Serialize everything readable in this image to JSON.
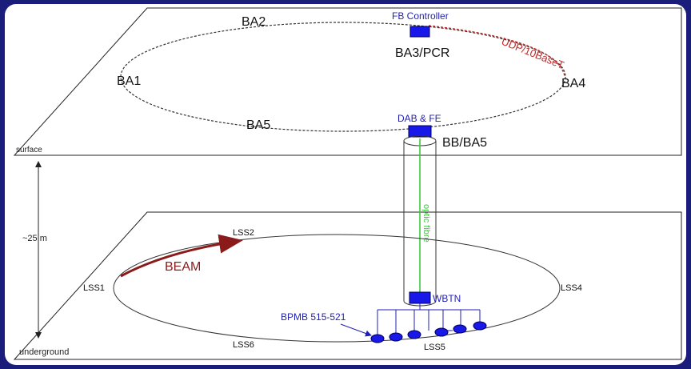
{
  "colors": {
    "frame": "#1a1e7a",
    "controller_blue": "#1818e8",
    "label_blue": "#1f1fb8",
    "udp_red": "#c0282a",
    "beam_red": "#8b1a1a",
    "fibre_green": "#3ec93e"
  },
  "surface": {
    "plane_label": "surface",
    "points": [
      "BA1",
      "BA2",
      "BA3/PCR",
      "BA4",
      "BA5"
    ],
    "fb_controller": "FB Controller",
    "udp_link": "UDP/10BaseT",
    "dab_fe": "DAB & FE",
    "bb_ba5": "BB/BA5"
  },
  "fibre_label": "optic fibre",
  "depth_label": "~25 m",
  "underground": {
    "plane_label": "underground",
    "points": [
      "LSS1",
      "LSS2",
      "LSS4",
      "LSS5",
      "LSS6"
    ],
    "beam": "BEAM",
    "wbtn": "WBTN",
    "bpmb": "BPMB 515-521"
  },
  "icons": {
    "fb_controller": "controller-box-icon",
    "dab_fe": "dab-fe-box-icon",
    "wbtn": "wbtn-box-icon",
    "bpm": "bpm-monitor-icon"
  }
}
